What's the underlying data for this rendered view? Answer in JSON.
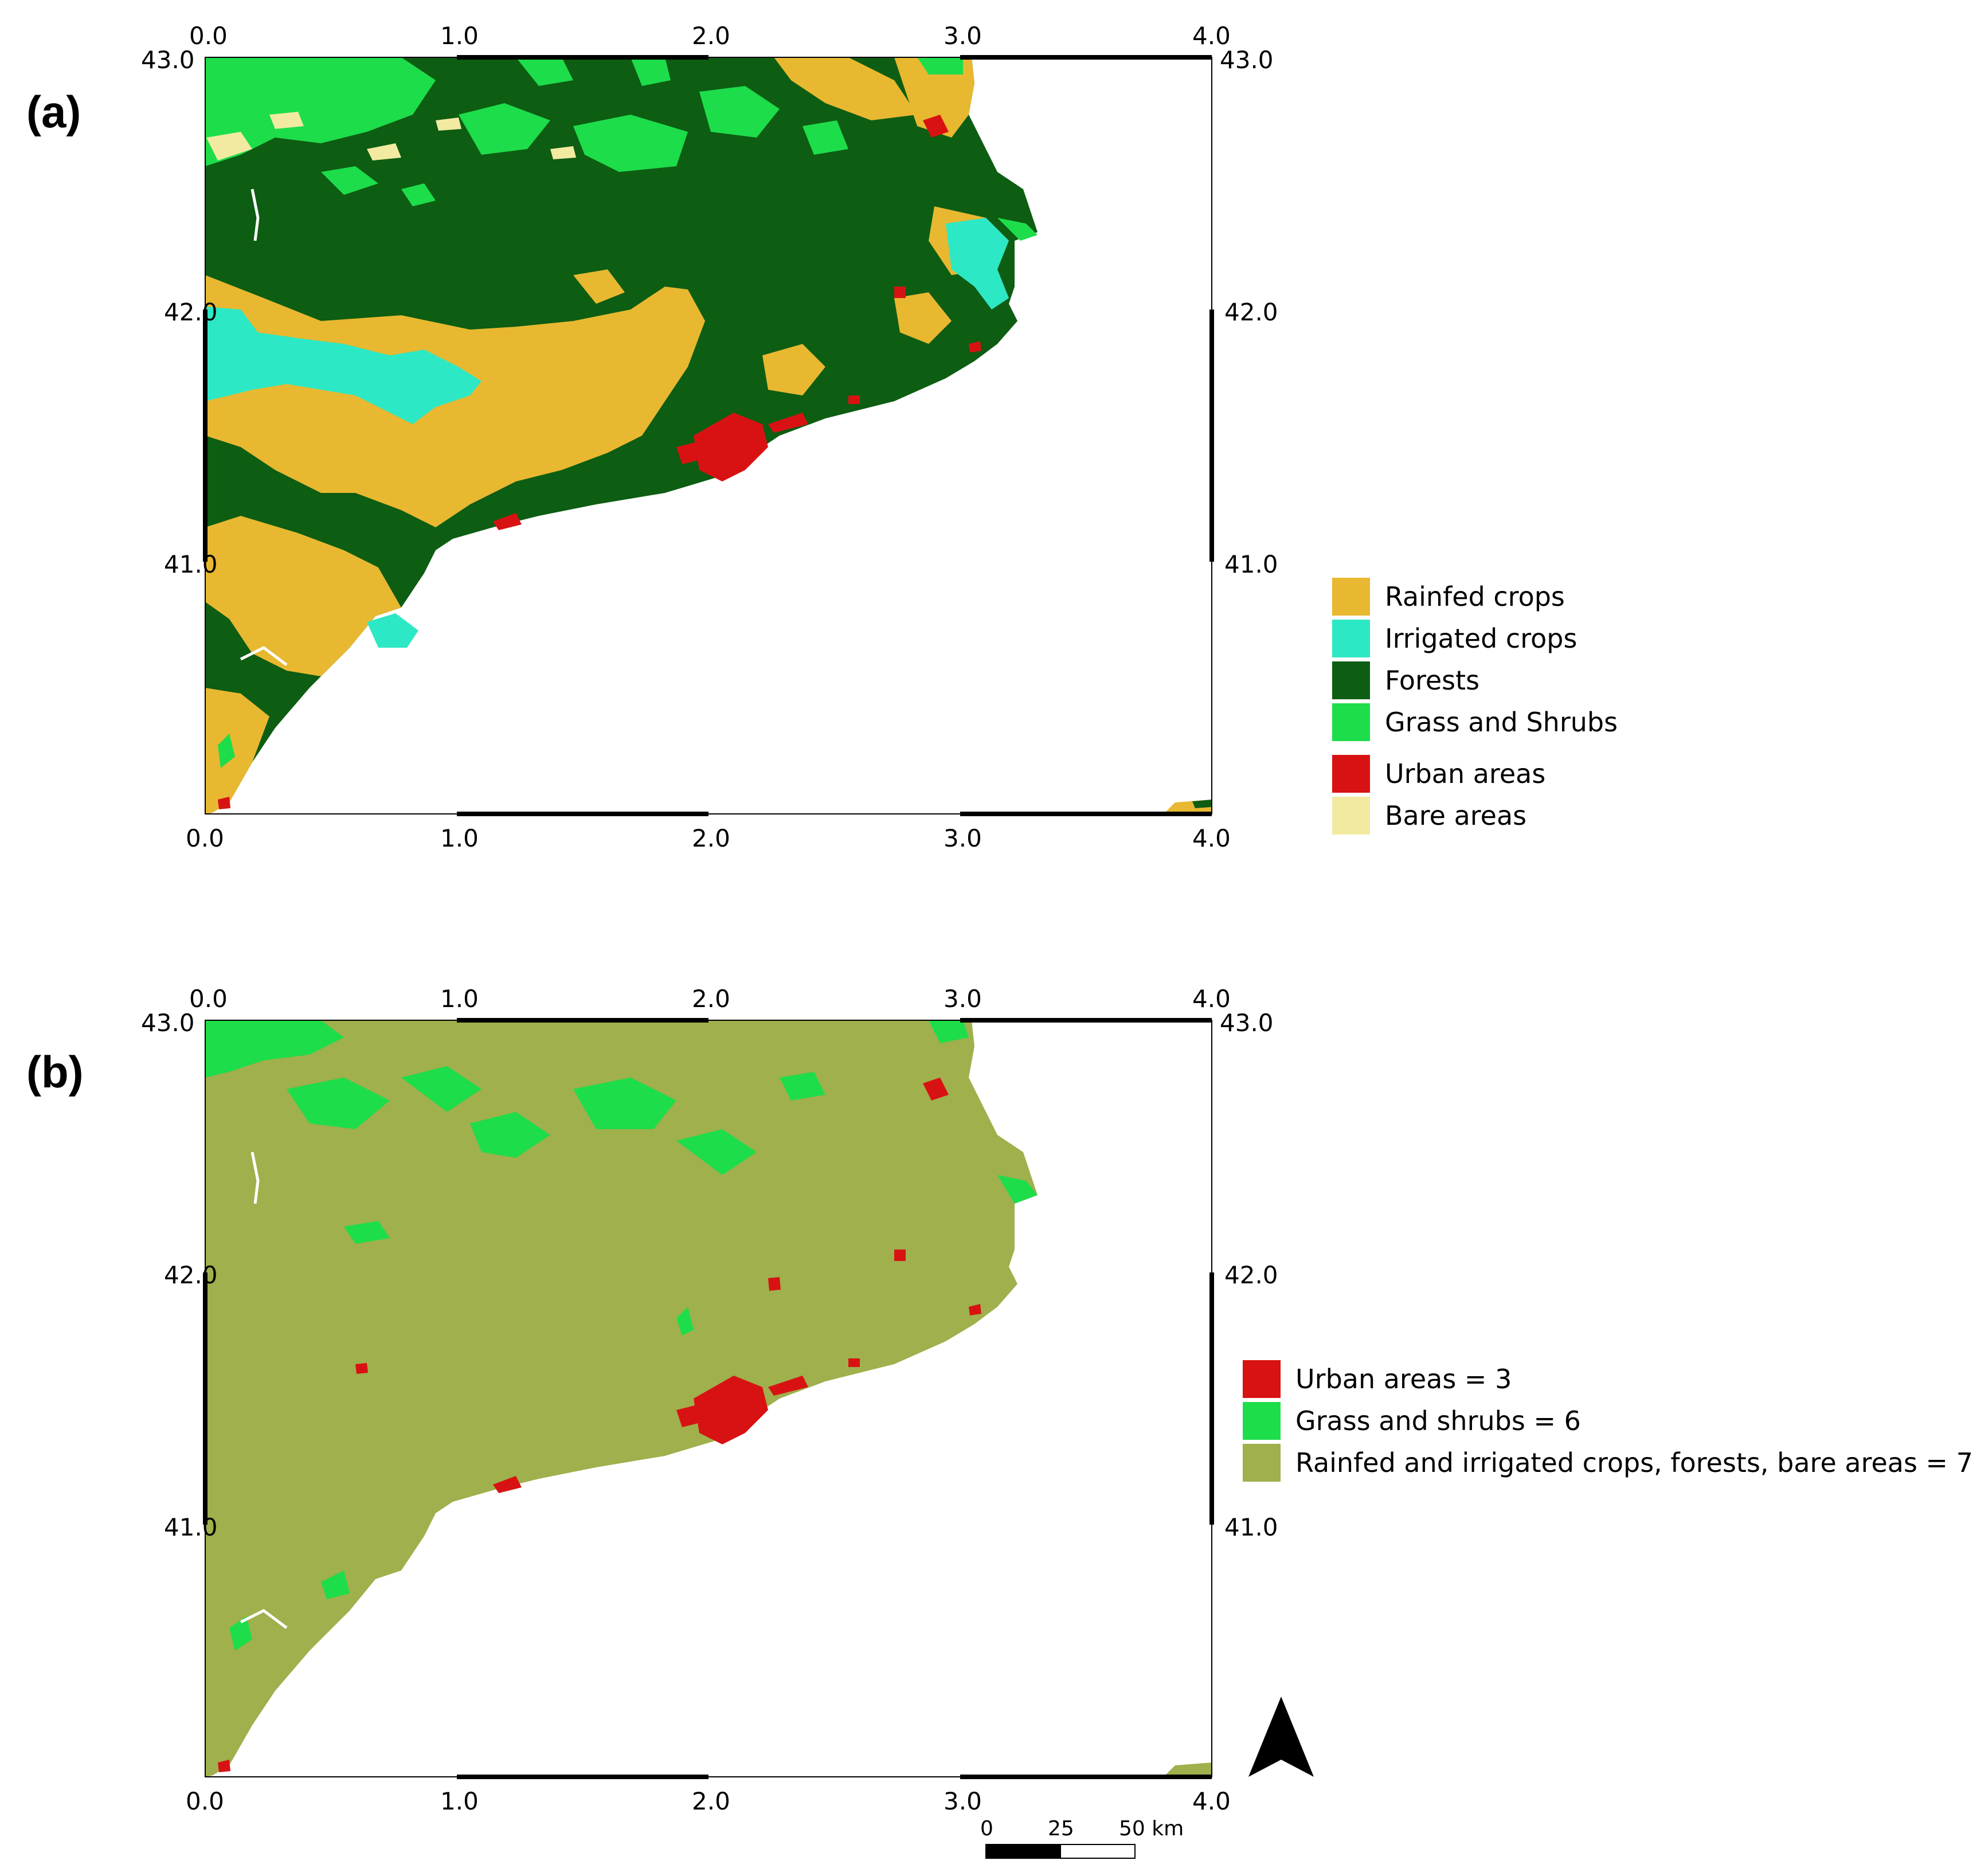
{
  "panels": [
    {
      "id": "a",
      "label": "(a)",
      "x_ticks": [
        "0.0",
        "1.0",
        "2.0",
        "3.0",
        "4.0"
      ],
      "y_ticks": [
        "43.0",
        "42.0",
        "41.0"
      ],
      "legend": [
        {
          "label": "Rainfed crops",
          "color": "#e8b830"
        },
        {
          "label": "Irrigated crops",
          "color": "#2de8c4"
        },
        {
          "label": "Forests",
          "color": "#0d5d12"
        },
        {
          "label": "Grass and Shrubs",
          "color": "#1ddd4a"
        },
        {
          "label": "Urban areas",
          "color": "#d81212"
        },
        {
          "label": "Bare areas",
          "color": "#f2eaa0"
        }
      ]
    },
    {
      "id": "b",
      "label": "(b)",
      "x_ticks": [
        "0.0",
        "1.0",
        "2.0",
        "3.0",
        "4.0"
      ],
      "y_ticks": [
        "43.0",
        "42.0",
        "41.0"
      ],
      "legend": [
        {
          "label": "Urban areas = 3",
          "color": "#d81212"
        },
        {
          "label": "Grass and shrubs = 6",
          "color": "#1ddd4a"
        },
        {
          "label": "Rainfed and irrigated crops, forests, bare areas = 7",
          "color": "#9fb04c"
        }
      ]
    }
  ],
  "scale_bar": {
    "labels": [
      "0",
      "25",
      "50 km"
    ]
  },
  "north_arrow": {
    "icon": "north-arrow-icon"
  }
}
